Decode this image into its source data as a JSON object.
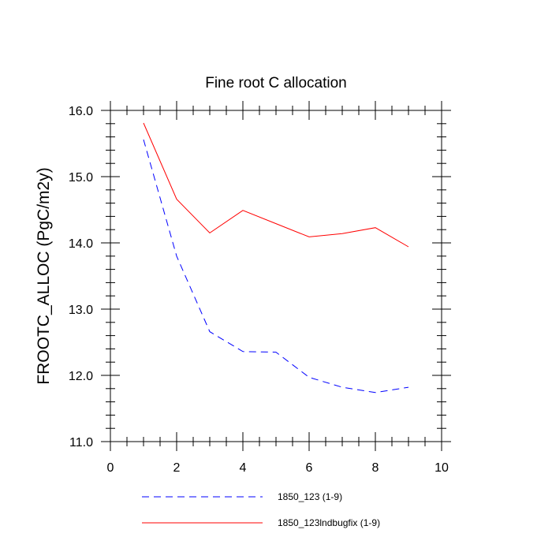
{
  "chart_data": {
    "type": "line",
    "title": "Fine root C allocation",
    "xlabel": "",
    "ylabel": "FROOTC_ALLOC  (PgC/m2y)",
    "xlim": [
      0,
      10
    ],
    "ylim": [
      11.0,
      16.0
    ],
    "xticks": [
      0,
      2,
      4,
      6,
      8,
      10
    ],
    "xtick_labels": [
      "0",
      "2",
      "4",
      "6",
      "8",
      "10"
    ],
    "yticks": [
      11.0,
      12.0,
      13.0,
      14.0,
      15.0,
      16.0
    ],
    "ytick_labels": [
      "11.0",
      "12.0",
      "13.0",
      "14.0",
      "15.0",
      "16.0"
    ],
    "legend_position": "bottom",
    "series": [
      {
        "name": "1850_123 (1-9)",
        "color": "#0000ff",
        "dash": "dashed",
        "x": [
          1,
          2,
          3,
          4,
          5,
          6,
          7,
          8,
          9
        ],
        "y": [
          15.56,
          13.8,
          12.66,
          12.36,
          12.35,
          11.97,
          11.82,
          11.74,
          11.82
        ]
      },
      {
        "name": "1850_123lndbugfix (1-9)",
        "color": "#ff0000",
        "dash": "solid",
        "x": [
          1,
          2,
          3,
          4,
          5,
          6,
          7,
          8,
          9
        ],
        "y": [
          15.81,
          14.66,
          14.15,
          14.49,
          14.29,
          14.09,
          14.14,
          14.23,
          13.94
        ]
      }
    ]
  }
}
